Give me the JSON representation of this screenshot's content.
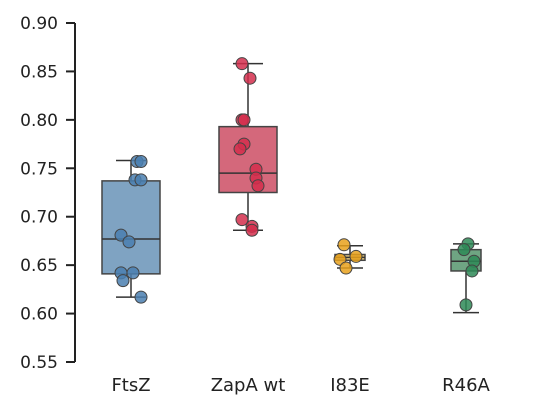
{
  "chart_data": {
    "type": "box",
    "title": "",
    "xlabel": "",
    "ylabel": "",
    "ylim": [
      0.55,
      0.9
    ],
    "y_ticks": [
      "0.55",
      "0.60",
      "0.65",
      "0.70",
      "0.75",
      "0.80",
      "0.85",
      "0.90"
    ],
    "grid": false,
    "categories": [
      "FtsZ",
      "ZapA wt",
      "I83E",
      "R46A"
    ],
    "groups": [
      {
        "label": "FtsZ",
        "box_color": "#7fa3c2",
        "point_color": "#4a7fb0",
        "box": {
          "q1": 0.641,
          "median": 0.677,
          "q3": 0.737,
          "whisker_low": 0.617,
          "whisker_high": 0.758
        },
        "points": [
          0.757,
          0.757,
          0.738,
          0.738,
          0.681,
          0.674,
          0.642,
          0.642,
          0.634,
          0.617
        ]
      },
      {
        "label": "ZapA wt",
        "box_color": "#d4687b",
        "point_color": "#d42e4c",
        "box": {
          "q1": 0.725,
          "median": 0.745,
          "q3": 0.793,
          "whisker_low": 0.686,
          "whisker_high": 0.858
        },
        "points": [
          0.858,
          0.843,
          0.8,
          0.8,
          0.775,
          0.77,
          0.749,
          0.74,
          0.732,
          0.697,
          0.69,
          0.686
        ]
      },
      {
        "label": "I83E",
        "box_color": "#e6c77a",
        "point_color": "#e8a11c",
        "box": {
          "q1": 0.655,
          "median": 0.658,
          "q3": 0.661,
          "whisker_low": 0.647,
          "whisker_high": 0.67
        },
        "points": [
          0.671,
          0.659,
          0.656,
          0.647
        ]
      },
      {
        "label": "R46A",
        "box_color": "#6fa583",
        "point_color": "#2e8a57",
        "box": {
          "q1": 0.644,
          "median": 0.654,
          "q3": 0.666,
          "whisker_low": 0.601,
          "whisker_high": 0.672
        },
        "points": [
          0.672,
          0.666,
          0.654,
          0.644,
          0.609
        ]
      }
    ]
  }
}
